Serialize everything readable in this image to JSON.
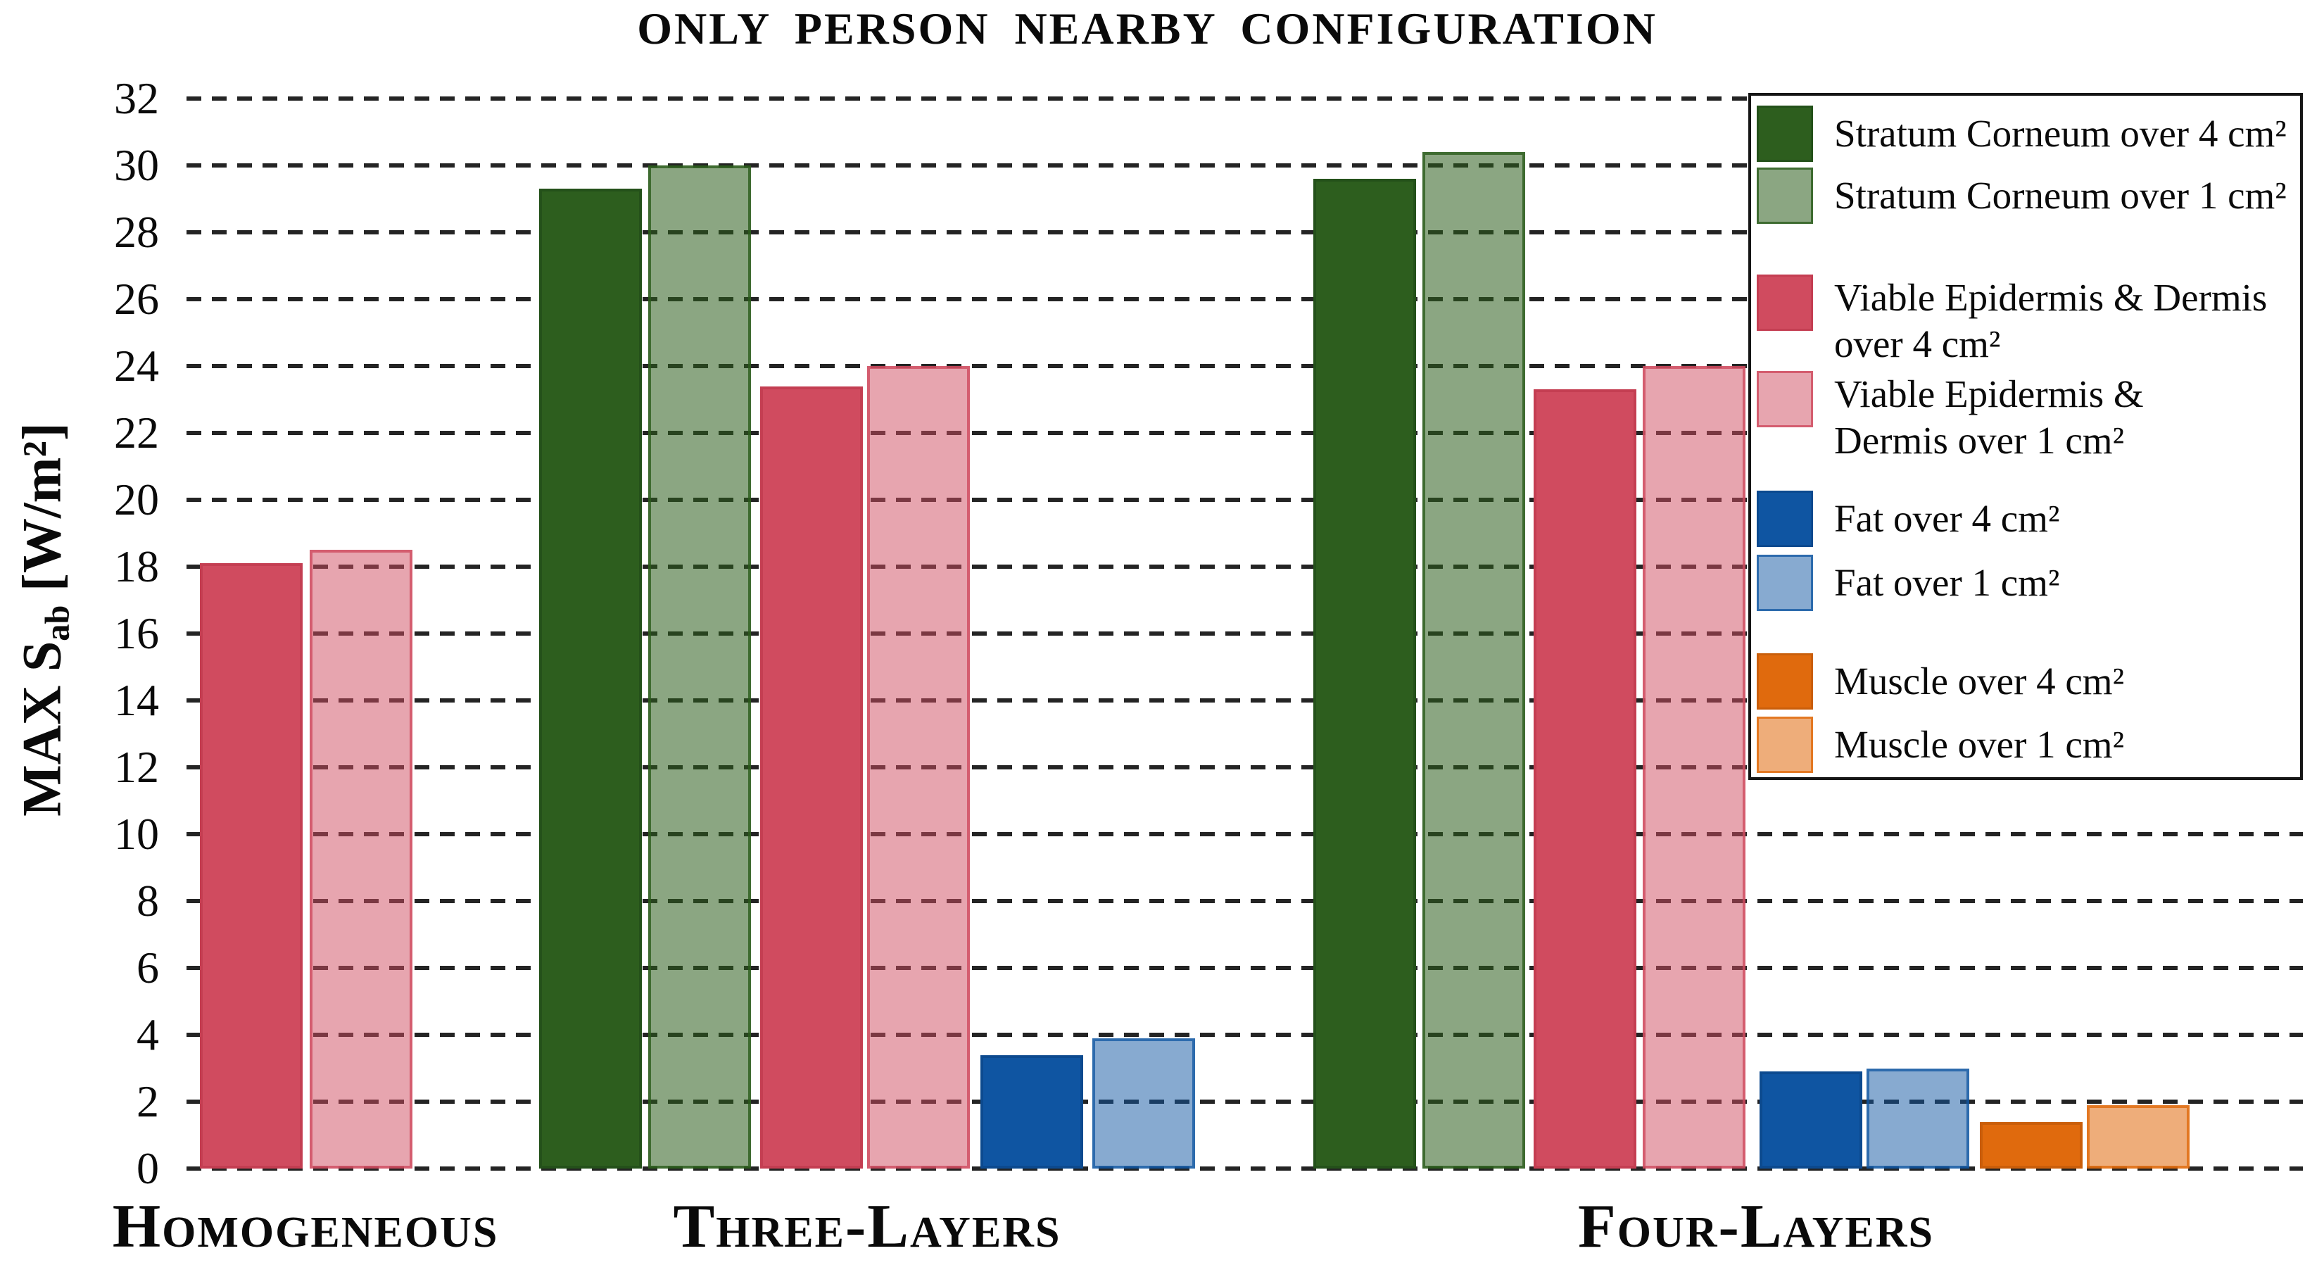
{
  "chart_data": {
    "type": "bar",
    "title": "ONLY PERSON NEARBY CONFIGURATION",
    "ylabel": "MAX S_ab [W/m²]",
    "ylabel_parts": {
      "prefix": "MAX S",
      "sub": "ab",
      "suffix": " [W/m²]"
    },
    "xlabel": "",
    "ylim": [
      0,
      32
    ],
    "ytick_step": 2,
    "grid": "horizontal-dashed-black",
    "legend_position": "upper-right",
    "categories": [
      "Homogeneous",
      "Three-Layers",
      "Four-Layers"
    ],
    "series": [
      {
        "name": "Stratum Corneum over 4 cm²",
        "color": "#2d5e1e",
        "fill": "#2d5e1e",
        "border": "#24511a",
        "values": [
          null,
          29.3,
          29.6
        ]
      },
      {
        "name": "Stratum Corneum over 1 cm²",
        "color": "#8ca683",
        "fill": "rgba(43,92,28,0.55)",
        "border": "rgba(43,92,28,0.8)",
        "values": [
          null,
          30.0,
          30.4
        ]
      },
      {
        "name": "Viable Epidermis & Dermis over 4 cm²",
        "color": "#d04b5f",
        "fill": "#d04b5f",
        "border": "#c43e52",
        "values": [
          18.1,
          23.4,
          23.3
        ]
      },
      {
        "name": "Viable Epidermis & Dermis over 1 cm²",
        "color": "#e8a5af",
        "fill": "rgba(208,75,95,0.5)",
        "border": "rgba(208,75,95,0.8)",
        "values": [
          18.5,
          24.0,
          24.0
        ]
      },
      {
        "name": "Fat over 4 cm²",
        "color": "#0f55a2",
        "fill": "#0f55a2",
        "border": "#0c4a8f",
        "values": [
          null,
          3.4,
          2.9
        ]
      },
      {
        "name": "Fat over 1 cm²",
        "color": "#87aad1",
        "fill": "rgba(15,85,162,0.5)",
        "border": "rgba(15,85,162,0.75)",
        "values": [
          null,
          3.9,
          3.0
        ]
      },
      {
        "name": "Muscle over 4 cm²",
        "color": "#e06a0d",
        "fill": "#e06a0d",
        "border": "#ca5e0a",
        "values": [
          null,
          null,
          1.4
        ]
      },
      {
        "name": "Muscle over 1 cm²",
        "color": "#eead7a",
        "fill": "rgba(224,106,13,0.55)",
        "border": "rgba(224,106,13,0.8)",
        "values": [
          null,
          null,
          1.9
        ]
      }
    ],
    "legend_rows": [
      {
        "series_index": 0,
        "lines": [
          "Stratum Corneum over 4 cm²"
        ]
      },
      {
        "series_index": 1,
        "lines": [
          "Stratum Corneum over 1 cm²"
        ]
      },
      {
        "series_index": 2,
        "lines": [
          "Viable Epidermis & Dermis",
          "over 4 cm²"
        ]
      },
      {
        "series_index": 3,
        "lines": [
          "Viable Epidermis &",
          "Dermis over 1 cm²"
        ]
      },
      {
        "series_index": 4,
        "lines": [
          "Fat over 4 cm²"
        ]
      },
      {
        "series_index": 5,
        "lines": [
          "Fat over 1 cm²"
        ]
      },
      {
        "series_index": 6,
        "lines": [
          "Muscle over 4 cm²"
        ]
      },
      {
        "series_index": 7,
        "lines": [
          "Muscle over 1 cm²"
        ]
      }
    ]
  }
}
